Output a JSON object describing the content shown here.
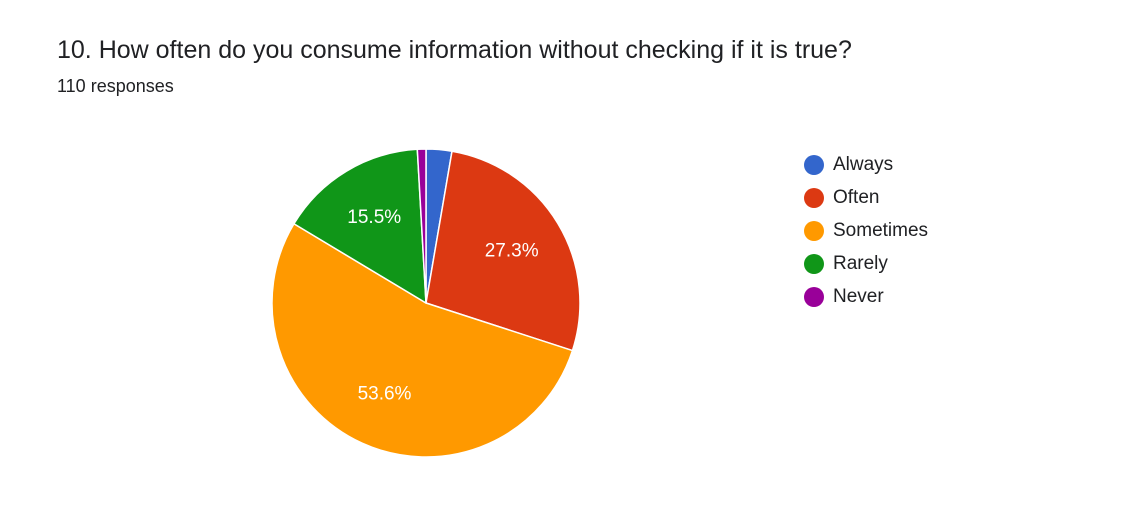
{
  "question": {
    "title": "10. How often do you consume information without checking if it is true?",
    "responses": "110 responses"
  },
  "chart_data": {
    "type": "pie",
    "categories": [
      "Always",
      "Often",
      "Sometimes",
      "Rarely",
      "Never"
    ],
    "values": [
      2.7,
      27.3,
      53.6,
      15.5,
      0.9
    ],
    "value_labels": [
      "",
      "27.3%",
      "53.6%",
      "15.5%",
      ""
    ],
    "colors": [
      "#3366cc",
      "#dc3912",
      "#ff9900",
      "#109618",
      "#990099"
    ],
    "legend_position": "right",
    "start_angle_deg": 90,
    "direction": "clockwise",
    "slice_border_color": "#ffffff"
  }
}
